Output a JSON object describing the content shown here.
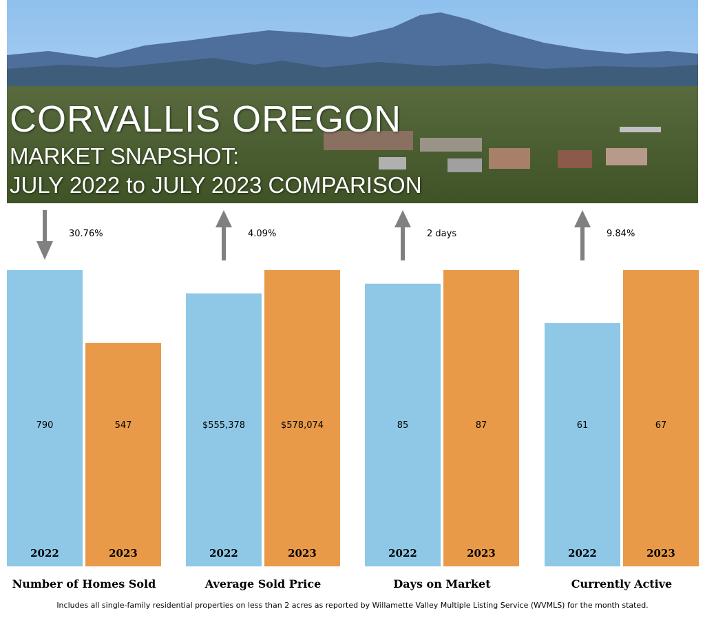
{
  "header": {
    "title": "CORVALLIS OREGON",
    "subtitle_line1": "MARKET SNAPSHOT:",
    "subtitle_line2": "JULY 2022 to JULY 2023 COMPARISON"
  },
  "colors": {
    "year_2022": "#8ec8e6",
    "year_2023": "#e89a48",
    "arrow": "#808080"
  },
  "chart_data": {
    "type": "bar",
    "series": [
      {
        "name": "2022",
        "color": "#8ec8e6"
      },
      {
        "name": "2023",
        "color": "#e89a48"
      }
    ],
    "groups": [
      {
        "category": "Number of Homes Sold",
        "values": [
          790,
          547
        ],
        "labels": [
          "790",
          "547"
        ],
        "change": "30.76%",
        "direction": "down"
      },
      {
        "category": "Average Sold Price",
        "values": [
          555378,
          578074
        ],
        "labels": [
          "$555,378",
          "$578,074"
        ],
        "change": "4.09%",
        "direction": "up"
      },
      {
        "category": "Days on Market",
        "values": [
          85,
          87
        ],
        "labels": [
          "85",
          "87"
        ],
        "change": "2 days",
        "direction": "up"
      },
      {
        "category": "Currently Active",
        "values": [
          61,
          67
        ],
        "labels": [
          "61",
          "67"
        ],
        "change": "9.84%",
        "direction": "up"
      }
    ]
  },
  "footer": {
    "note": "Includes all single-family residential properties on less than 2 acres as reported by Willamette Valley Multiple Listing Service (WVMLS) for the month stated."
  }
}
